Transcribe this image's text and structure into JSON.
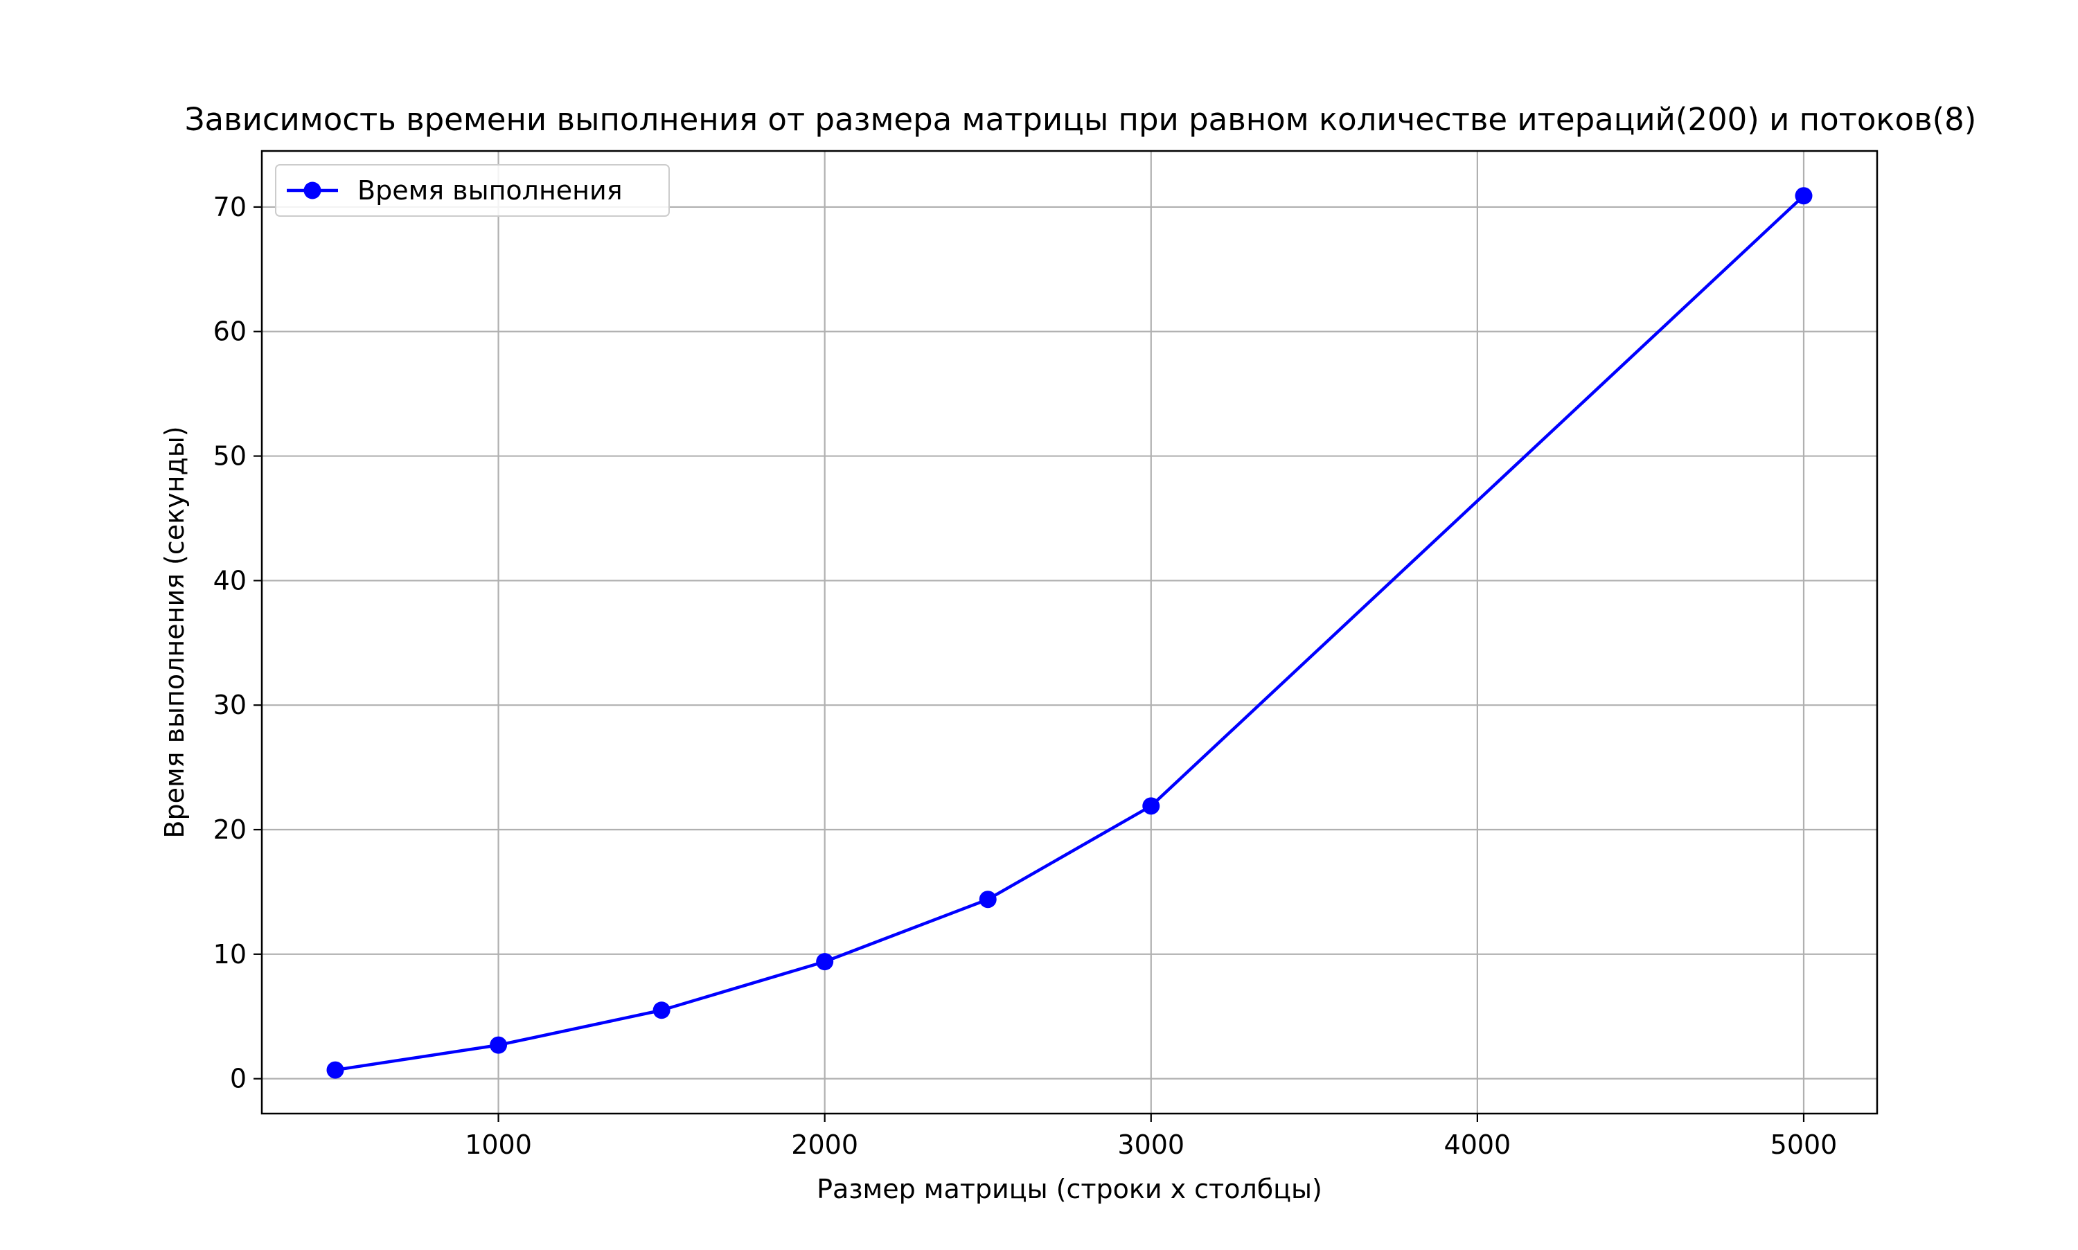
{
  "chart_data": {
    "type": "line",
    "title": "Зависимость времени выполнения от размера матрицы при равном количестве итераций(200) и потоков(8)",
    "xlabel": "Размер матрицы (строки x столбцы)",
    "ylabel": "Время выполнения (секунды)",
    "xlim": [
      275,
      5225
    ],
    "ylim": [
      -2.8,
      74.5
    ],
    "xticks": [
      1000,
      2000,
      3000,
      4000,
      5000
    ],
    "yticks": [
      0,
      10,
      20,
      30,
      40,
      50,
      60,
      70
    ],
    "grid": true,
    "legend_position": "upper-left",
    "series": [
      {
        "name": "Время выполнения",
        "color": "#0000ff",
        "marker": "circle",
        "x": [
          500,
          1000,
          1500,
          2000,
          2500,
          3000,
          5000
        ],
        "y": [
          0.7,
          2.7,
          5.5,
          9.4,
          14.4,
          21.9,
          70.9
        ]
      }
    ]
  }
}
